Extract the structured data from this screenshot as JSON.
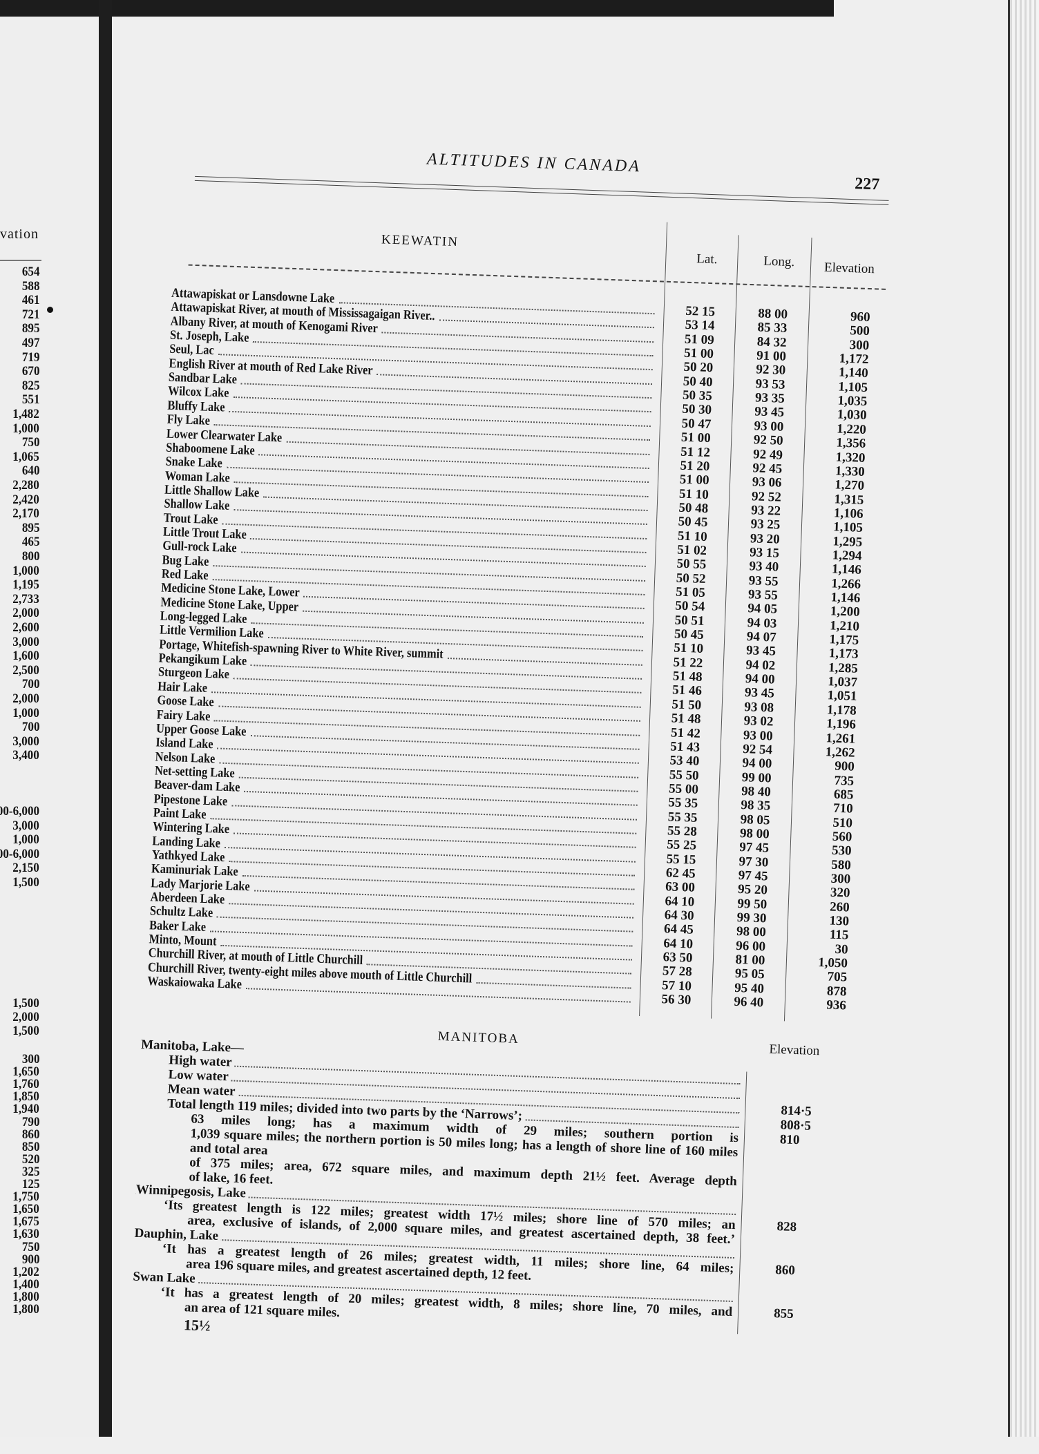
{
  "header": {
    "running_title": "ALTITUDES IN CANADA",
    "page_number": "227"
  },
  "left_page": {
    "column_header": "vation",
    "group1": [
      "654",
      "588",
      "461",
      "721",
      "895",
      "497",
      "719",
      "670",
      "825",
      "551",
      "1,482",
      "1,000",
      "750",
      "1,065",
      "640",
      "2,280",
      "2,420",
      "2,170",
      "895",
      "465",
      "800",
      "1,000",
      "1,195",
      "2,733",
      "2,000",
      "2,600",
      "3,000",
      "1,600",
      "2,500",
      "700",
      "2,000",
      "1,000",
      "700",
      "3,000",
      "3,400"
    ],
    "group2": [
      "00-6,000",
      "3,000",
      "1,000",
      "00-6,000",
      "2,150",
      "1,500"
    ],
    "group3": [
      "1,500",
      "2,000",
      "1,500"
    ],
    "group4": [
      "300",
      "1,650",
      "1,760",
      "1,850",
      "1,940",
      "790",
      "860",
      "850",
      "520",
      "325",
      "125",
      "1,750",
      "1,650",
      "1,675",
      "1,630",
      "750",
      "900",
      "1,202",
      "1,400",
      "1,800",
      "1,800"
    ]
  },
  "keewatin": {
    "title": "KEEWATIN",
    "columns": {
      "lat": "Lat.",
      "long": "Long.",
      "elevation": "Elevation"
    },
    "rows": [
      {
        "name": "Attawapiskat or Lansdowne Lake",
        "lat": "52 15",
        "long": "88 00",
        "elevation": "960"
      },
      {
        "name": "Attawapiskat River, at mouth of Mississagaigan River..",
        "lat": "53 14",
        "long": "85 33",
        "elevation": "500"
      },
      {
        "name": "Albany River, at mouth of Kenogami River",
        "lat": "51 09",
        "long": "84 32",
        "elevation": "300"
      },
      {
        "name": "St. Joseph, Lake",
        "lat": "51 00",
        "long": "91 00",
        "elevation": "1,172"
      },
      {
        "name": "Seul, Lac",
        "lat": "50 20",
        "long": "92 30",
        "elevation": "1,140"
      },
      {
        "name": "English River at mouth of Red Lake River",
        "lat": "50 40",
        "long": "93 53",
        "elevation": "1,105"
      },
      {
        "name": "Sandbar Lake",
        "lat": "50 35",
        "long": "93 35",
        "elevation": "1,035"
      },
      {
        "name": "Wilcox Lake",
        "lat": "50 30",
        "long": "93 45",
        "elevation": "1,030"
      },
      {
        "name": "Bluffy Lake",
        "lat": "50 47",
        "long": "93 00",
        "elevation": "1,220"
      },
      {
        "name": "Fly Lake",
        "lat": "51 00",
        "long": "92 50",
        "elevation": "1,356"
      },
      {
        "name": "Lower Clearwater Lake",
        "lat": "51 12",
        "long": "92 49",
        "elevation": "1,320"
      },
      {
        "name": "Shaboomene Lake",
        "lat": "51 20",
        "long": "92 45",
        "elevation": "1,330"
      },
      {
        "name": "Snake Lake",
        "lat": "51 00",
        "long": "93 06",
        "elevation": "1,270"
      },
      {
        "name": "Woman Lake",
        "lat": "51 10",
        "long": "92 52",
        "elevation": "1,315"
      },
      {
        "name": "Little Shallow Lake",
        "lat": "50 48",
        "long": "93 22",
        "elevation": "1,106"
      },
      {
        "name": "Shallow Lake",
        "lat": "50 45",
        "long": "93 25",
        "elevation": "1,105"
      },
      {
        "name": "Trout Lake",
        "lat": "51 10",
        "long": "93 20",
        "elevation": "1,295"
      },
      {
        "name": "Little Trout Lake",
        "lat": "51 02",
        "long": "93 15",
        "elevation": "1,294"
      },
      {
        "name": "Gull-rock Lake",
        "lat": "50 55",
        "long": "93 40",
        "elevation": "1,146"
      },
      {
        "name": "Bug Lake",
        "lat": "50 52",
        "long": "93 55",
        "elevation": "1,266"
      },
      {
        "name": "Red Lake",
        "lat": "51 05",
        "long": "93 55",
        "elevation": "1,146"
      },
      {
        "name": "Medicine Stone Lake, Lower",
        "lat": "50 54",
        "long": "94 05",
        "elevation": "1,200"
      },
      {
        "name": "Medicine Stone Lake, Upper",
        "lat": "50 51",
        "long": "94 03",
        "elevation": "1,210"
      },
      {
        "name": "Long-legged Lake",
        "lat": "50 45",
        "long": "94 07",
        "elevation": "1,175"
      },
      {
        "name": "Little Vermilion Lake",
        "lat": "51 10",
        "long": "93 45",
        "elevation": "1,173"
      },
      {
        "name": "Portage, Whitefish-spawning River to White River, summit",
        "lat": "51 22",
        "long": "94 02",
        "elevation": "1,285"
      },
      {
        "name": "Pekangikum Lake",
        "lat": "51 48",
        "long": "94 00",
        "elevation": "1,037"
      },
      {
        "name": "Sturgeon Lake",
        "lat": "51 46",
        "long": "93 45",
        "elevation": "1,051"
      },
      {
        "name": "Hair Lake",
        "lat": "51 50",
        "long": "93 08",
        "elevation": "1,178"
      },
      {
        "name": "Goose Lake",
        "lat": "51 48",
        "long": "93 02",
        "elevation": "1,196"
      },
      {
        "name": "Fairy Lake",
        "lat": "51 42",
        "long": "93 00",
        "elevation": "1,261"
      },
      {
        "name": "Upper Goose Lake",
        "lat": "51 43",
        "long": "92 54",
        "elevation": "1,262"
      },
      {
        "name": "Island Lake",
        "lat": "53 40",
        "long": "94 00",
        "elevation": "900"
      },
      {
        "name": "Nelson Lake",
        "lat": "55 50",
        "long": "99 00",
        "elevation": "735"
      },
      {
        "name": "Net-setting Lake",
        "lat": "55 00",
        "long": "98 40",
        "elevation": "685"
      },
      {
        "name": "Beaver-dam Lake",
        "lat": "55 35",
        "long": "98 35",
        "elevation": "710"
      },
      {
        "name": "Pipestone Lake",
        "lat": "55 35",
        "long": "98 05",
        "elevation": "510"
      },
      {
        "name": "Paint Lake",
        "lat": "55 28",
        "long": "98 00",
        "elevation": "560"
      },
      {
        "name": "Wintering Lake",
        "lat": "55 25",
        "long": "97 45",
        "elevation": "530"
      },
      {
        "name": "Landing Lake",
        "lat": "55 15",
        "long": "97 30",
        "elevation": "580"
      },
      {
        "name": "Yathkyed Lake",
        "lat": "62 45",
        "long": "97 45",
        "elevation": "300"
      },
      {
        "name": "Kaminuriak Lake",
        "lat": "63 00",
        "long": "95 20",
        "elevation": "320"
      },
      {
        "name": "Lady Marjorie Lake",
        "lat": "64 10",
        "long": "99 50",
        "elevation": "260"
      },
      {
        "name": "Aberdeen Lake",
        "lat": "64 30",
        "long": "99 30",
        "elevation": "130"
      },
      {
        "name": "Schultz Lake",
        "lat": "64 45",
        "long": "98 00",
        "elevation": "115"
      },
      {
        "name": "Baker Lake",
        "lat": "64 10",
        "long": "96 00",
        "elevation": "30"
      },
      {
        "name": "Minto, Mount",
        "lat": "63 50",
        "long": "81 00",
        "elevation": "1,050"
      },
      {
        "name": "Churchill River, at mouth of Little Churchill",
        "lat": "57 28",
        "long": "95 05",
        "elevation": "705"
      },
      {
        "name": "Churchill River, twenty-eight miles above mouth of Little Churchill",
        "lat": "57 10",
        "long": "95 40",
        "elevation": "878"
      },
      {
        "name": "Waskaiowaka Lake",
        "lat": "56 30",
        "long": "96 40",
        "elevation": "936"
      }
    ]
  },
  "manitoba": {
    "title": "MANITOBA",
    "elevation_header": "Elevation",
    "lines": [
      {
        "text": "Manitoba, Lake—",
        "indent": 0,
        "leader": false,
        "value": ""
      },
      {
        "text": "High water",
        "indent": 1,
        "leader": true,
        "value": ""
      },
      {
        "text": "Low water",
        "indent": 1,
        "leader": true,
        "value": ""
      },
      {
        "text": "Mean water",
        "indent": 1,
        "leader": true,
        "value": "814·5"
      },
      {
        "text": "Total length 119 miles; divided into two parts by the ‘Narrows’;",
        "indent": 1,
        "leader": true,
        "value": "808·5"
      },
      {
        "text": "63 miles long; has a maximum width of 29 miles; southern portion is",
        "indent": 2,
        "leader": false,
        "value": "810"
      },
      {
        "text": "1,039 square miles; the northern portion is 50 miles long; has a length of shore line of 160 miles and total area",
        "indent": 2,
        "leader": false,
        "value": ""
      },
      {
        "text": "of 375 miles; area, 672 square miles, and maximum depth 21½ feet. Average depth",
        "indent": 2,
        "leader": false,
        "value": ""
      },
      {
        "text": "of lake, 16 feet.",
        "indent": 2,
        "leader": false,
        "value": ""
      },
      {
        "text": "Winnipegosis, Lake",
        "indent": 0,
        "leader": true,
        "value": ""
      },
      {
        "text": "‘Its greatest length is 122 miles; greatest width 17½ miles; shore line of 570 miles; an",
        "indent": 1,
        "leader": false,
        "value": "828"
      },
      {
        "text": "area, exclusive of islands, of 2,000 square miles, and greatest ascertained depth, 38 feet.’",
        "indent": 2,
        "leader": false,
        "value": ""
      },
      {
        "text": "Dauphin, Lake",
        "indent": 0,
        "leader": true,
        "value": ""
      },
      {
        "text": "‘It has a greatest length of 26 miles; greatest width, 11 miles; shore line, 64 miles;",
        "indent": 1,
        "leader": false,
        "value": "860"
      },
      {
        "text": "area 196 square miles, and greatest ascertained depth, 12 feet.",
        "indent": 2,
        "leader": false,
        "value": ""
      },
      {
        "text": "Swan Lake",
        "indent": 0,
        "leader": true,
        "value": ""
      },
      {
        "text": "‘It has a greatest length of 20 miles; greatest width, 8 miles; shore line, 70 miles, and",
        "indent": 1,
        "leader": false,
        "value": "855"
      },
      {
        "text": "an area of 121 square miles.",
        "indent": 2,
        "leader": false,
        "value": ""
      }
    ],
    "signature_mark": "15½"
  }
}
